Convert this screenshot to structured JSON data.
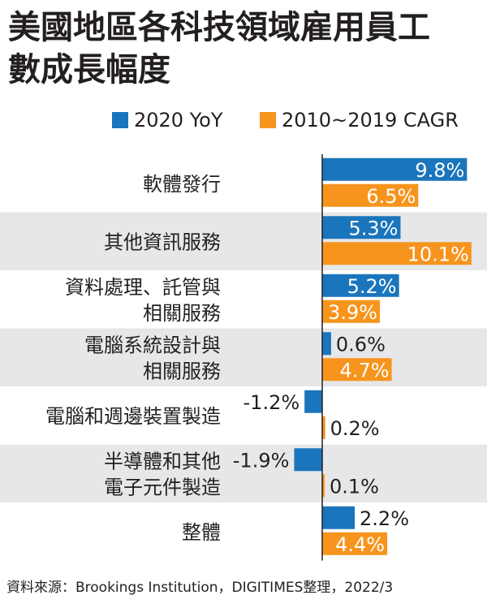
{
  "title_lines": [
    "美國地區各科技領域雇用員工",
    "數成長幅度"
  ],
  "source": "資料來源：Brookings Institution，DIGITIMES整理，2022/3",
  "colors": {
    "series_2020": "#1a75bc",
    "series_cagr": "#f7941d",
    "band": "#e6e7e8",
    "axis": "#231f20"
  },
  "chart_data": {
    "type": "bar",
    "orientation": "horizontal",
    "title": "美國地區各科技領域雇用員工數成長幅度",
    "categories": [
      [
        "軟體發行"
      ],
      [
        "其他資訊服務"
      ],
      [
        "資料處理、託管與",
        "相關服務"
      ],
      [
        "電腦系統設計與",
        "相關服務"
      ],
      [
        "電腦和週邊裝置製造"
      ],
      [
        "半導體和其他",
        "電子元件製造"
      ],
      [
        "整體"
      ]
    ],
    "series": [
      {
        "name": "2020 YoY",
        "values": [
          9.8,
          5.3,
          5.2,
          0.6,
          -1.2,
          -1.9,
          2.2
        ],
        "labels": [
          "9.8%",
          "5.3%",
          "5.2%",
          "0.6%",
          "-1.2%",
          "-1.9%",
          "2.2%"
        ]
      },
      {
        "name": "2010~2019 CAGR",
        "values": [
          6.5,
          10.1,
          3.9,
          4.7,
          0.2,
          0.1,
          4.4
        ],
        "labels": [
          "6.5%",
          "10.1%",
          "3.9%",
          "4.7%",
          "0.2%",
          "0.1%",
          "4.4%"
        ]
      }
    ],
    "xlim": [
      -2.0,
      10.5
    ],
    "legend_position": "top-right",
    "grid": false
  }
}
